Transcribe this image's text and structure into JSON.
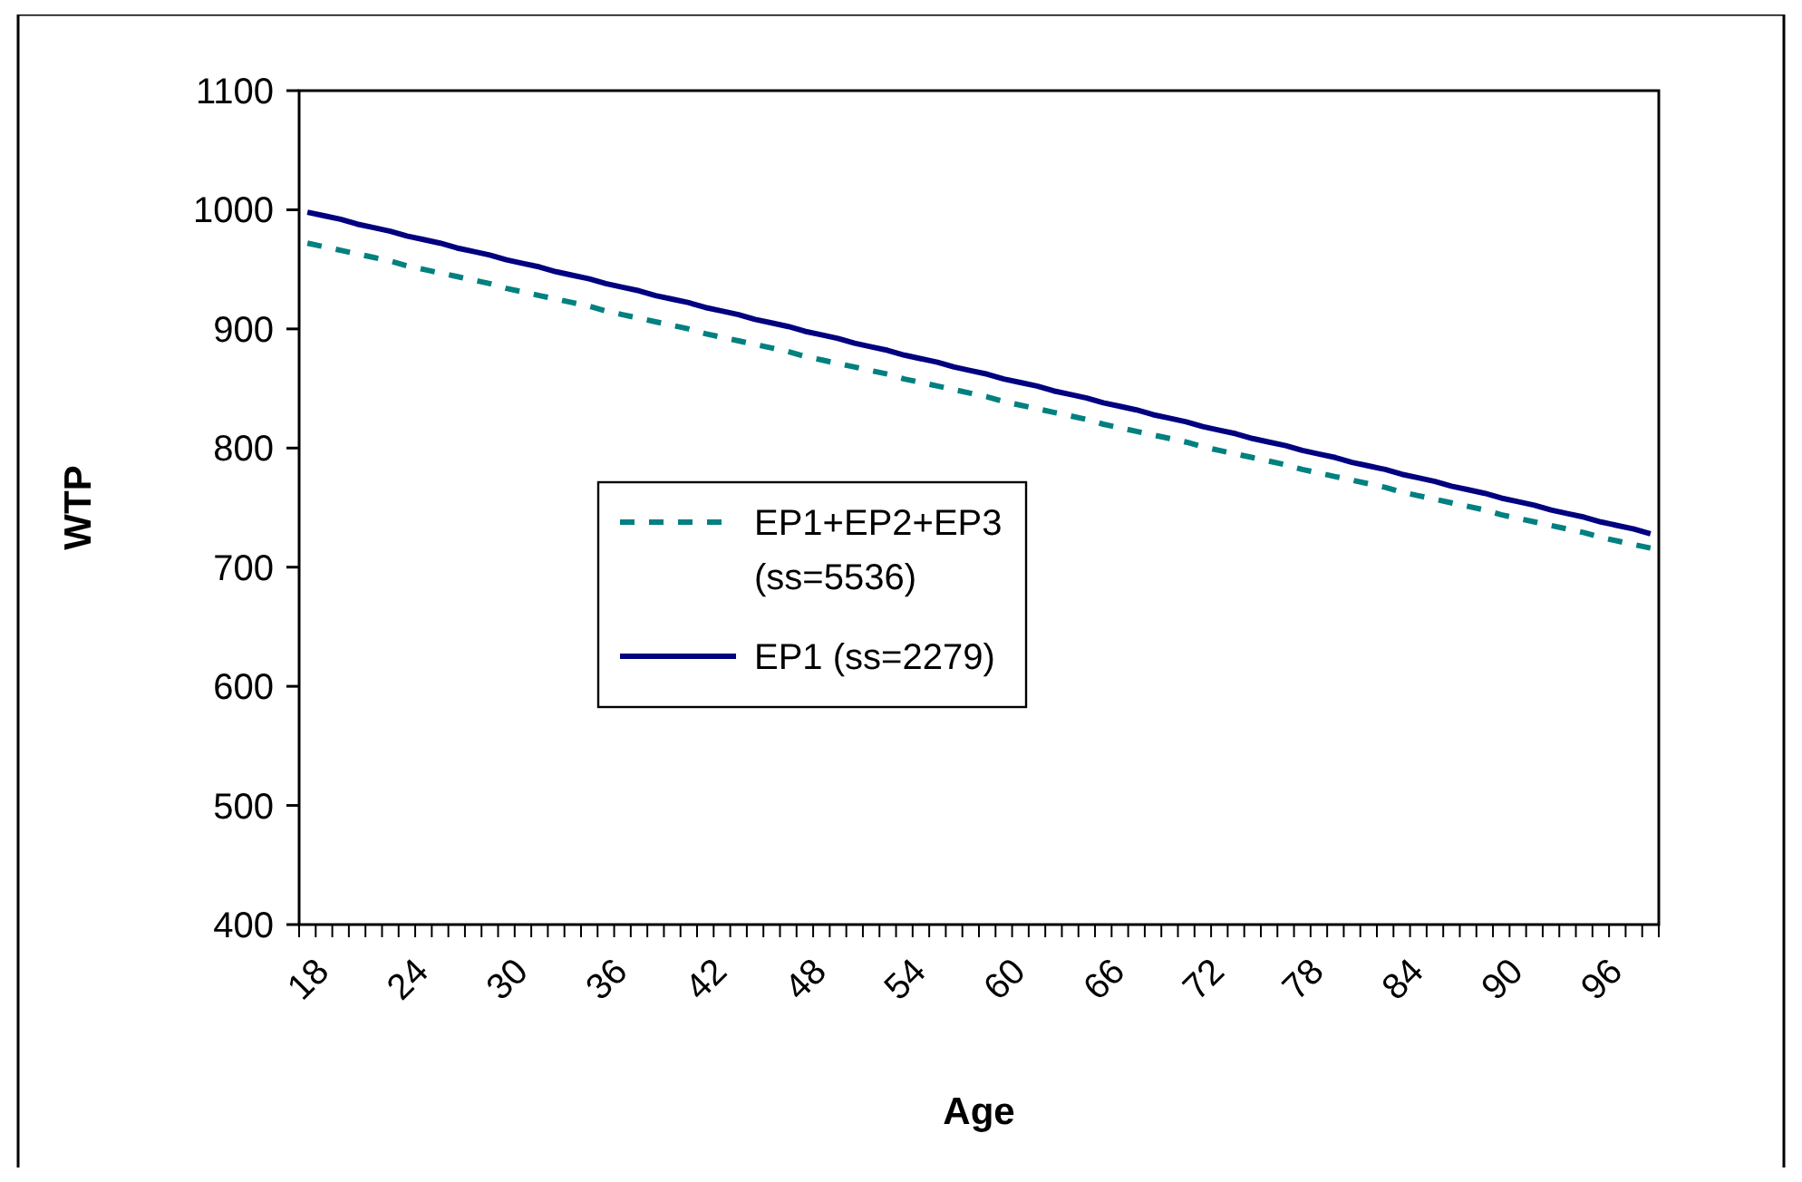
{
  "chart_data": {
    "type": "line",
    "xlabel": "Age",
    "ylabel": "WTP",
    "categories": [
      "18",
      null,
      null,
      null,
      null,
      null,
      "24",
      null,
      null,
      null,
      null,
      null,
      "30",
      null,
      null,
      null,
      null,
      null,
      "36",
      null,
      null,
      null,
      null,
      null,
      "42",
      null,
      null,
      null,
      null,
      null,
      "48",
      null,
      null,
      null,
      null,
      null,
      "54",
      null,
      null,
      null,
      null,
      null,
      "60",
      null,
      null,
      null,
      null,
      null,
      "66",
      null,
      null,
      null,
      null,
      null,
      "72",
      null,
      null,
      null,
      null,
      null,
      "78",
      null,
      null,
      null,
      null,
      null,
      "84",
      null,
      null,
      null,
      null,
      null,
      "90",
      null,
      null,
      null,
      null,
      null,
      "96",
      null,
      null,
      null
    ],
    "series": [
      {
        "name": "EP1+EP2+EP3 (ss=5536)",
        "color": "#008080",
        "line_style": "dashed",
        "values": [
          972,
          969,
          966,
          963,
          960,
          957,
          953,
          950,
          947,
          944,
          941,
          938,
          934,
          931,
          928,
          925,
          922,
          919,
          915,
          912,
          909,
          906,
          903,
          900,
          896,
          893,
          890,
          887,
          884,
          881,
          877,
          874,
          871,
          868,
          865,
          862,
          858,
          855,
          852,
          849,
          846,
          843,
          839,
          836,
          833,
          830,
          827,
          824,
          820,
          817,
          814,
          811,
          808,
          805,
          801,
          798,
          795,
          792,
          789,
          786,
          782,
          779,
          776,
          773,
          770,
          767,
          763,
          760,
          757,
          754,
          751,
          748,
          744,
          741,
          738,
          735,
          732,
          729,
          725,
          722,
          719,
          716
        ]
      },
      {
        "name": "EP1 (ss=2279)",
        "color": "#000080",
        "line_style": "solid",
        "values": [
          998,
          995,
          992,
          988,
          985,
          982,
          978,
          975,
          972,
          968,
          965,
          962,
          958,
          955,
          952,
          948,
          945,
          942,
          938,
          935,
          932,
          928,
          925,
          922,
          918,
          915,
          912,
          908,
          905,
          902,
          898,
          895,
          892,
          888,
          885,
          882,
          878,
          875,
          872,
          868,
          865,
          862,
          858,
          855,
          852,
          848,
          845,
          842,
          838,
          835,
          832,
          828,
          825,
          822,
          818,
          815,
          812,
          808,
          805,
          802,
          798,
          795,
          792,
          788,
          785,
          782,
          778,
          775,
          772,
          768,
          765,
          762,
          758,
          755,
          752,
          748,
          745,
          742,
          738,
          735,
          732,
          728
        ]
      }
    ],
    "ylim": [
      400,
      1100
    ],
    "yticks": [
      400,
      500,
      600,
      700,
      800,
      900,
      1000,
      1100
    ],
    "grid": false,
    "legend": "center",
    "marker": "none"
  }
}
